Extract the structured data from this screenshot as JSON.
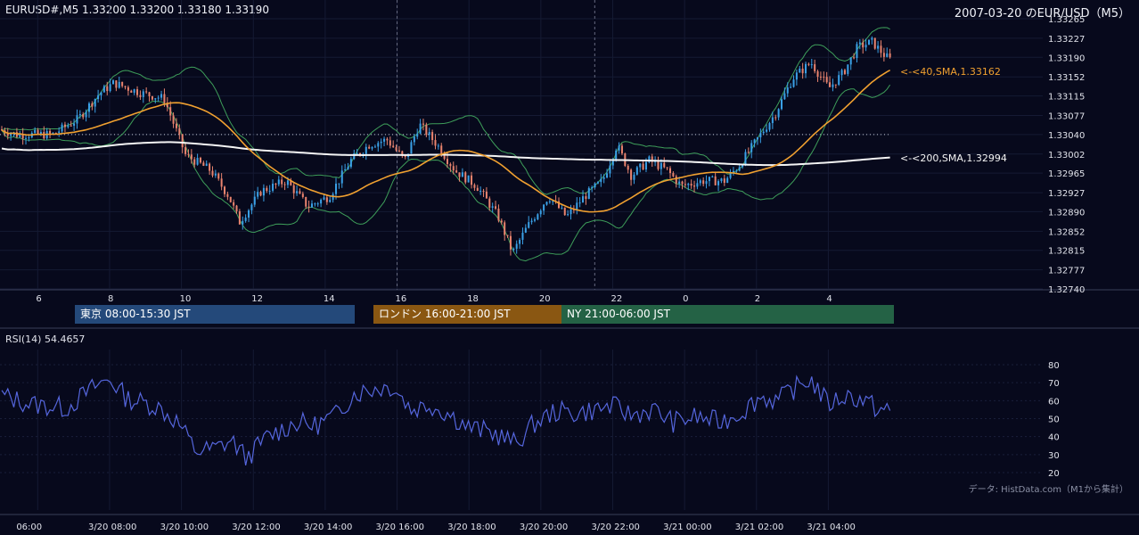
{
  "header": {
    "symbol_info": "EURUSD#,M5 1.33200 1.33200 1.33180 1.33190",
    "date_title": "2007-03-20 のEUR/USD（M5）"
  },
  "indicators": {
    "sma40_label": "<-<40,SMA,1.33162",
    "sma200_label": "<-<200,SMA,1.32994",
    "rsi_label": "RSI(14) 54.4657",
    "source": "データ: HistData.com（M1から集計）"
  },
  "sessions": [
    {
      "label": "東京 08:00-15:30 JST",
      "color": "#24497a"
    },
    {
      "label": "ロンドン 16:00-21:00 JST",
      "color": "#8a5712"
    },
    {
      "label": "NY 21:00-06:00 JST",
      "color": "#246245"
    }
  ],
  "colors": {
    "background": "#07091c",
    "bull": "#3aa0e6",
    "bear": "#e8836e",
    "sma40": "#f0a030",
    "sma200": "#f4f4f4",
    "bollinger": "#3e9e5a",
    "rsi": "#5566dd"
  },
  "chart_data": [
    {
      "type": "candlestick",
      "title": "EURUSD#,M5",
      "y_ticks": [
        "1.33265",
        "1.33227",
        "1.33190",
        "1.33152",
        "1.33115",
        "1.33077",
        "1.33040",
        "1.33002",
        "1.32965",
        "1.32927",
        "1.32890",
        "1.32852",
        "1.32815",
        "1.32777",
        "1.32740"
      ],
      "ylim": [
        1.3274,
        1.33265
      ],
      "x_ticks": [
        "6",
        "8",
        "10",
        "12",
        "14",
        "16",
        "18",
        "20",
        "22",
        "0",
        "2",
        "4"
      ],
      "last_bar": {
        "open": 1.332,
        "high": 1.332,
        "low": 1.3318,
        "close": 1.3319
      },
      "sma40_last": 1.33162,
      "sma200_last": 1.32994,
      "reference_level": 1.3304,
      "price_path": [
        {
          "hour": 5.0,
          "price": 1.3305
        },
        {
          "hour": 5.5,
          "price": 1.3304
        },
        {
          "hour": 6.5,
          "price": 1.3304
        },
        {
          "hour": 7.2,
          "price": 1.3307
        },
        {
          "hour": 7.8,
          "price": 1.3312
        },
        {
          "hour": 8.2,
          "price": 1.3314
        },
        {
          "hour": 9.0,
          "price": 1.3312
        },
        {
          "hour": 9.6,
          "price": 1.3311
        },
        {
          "hour": 10.2,
          "price": 1.33
        },
        {
          "hour": 10.9,
          "price": 1.3297
        },
        {
          "hour": 11.4,
          "price": 1.3292
        },
        {
          "hour": 11.7,
          "price": 1.3287
        },
        {
          "hour": 12.3,
          "price": 1.3293
        },
        {
          "hour": 13.0,
          "price": 1.3295
        },
        {
          "hour": 13.6,
          "price": 1.329
        },
        {
          "hour": 14.2,
          "price": 1.3292
        },
        {
          "hour": 14.8,
          "price": 1.3299
        },
        {
          "hour": 15.3,
          "price": 1.3302
        },
        {
          "hour": 15.8,
          "price": 1.3303
        },
        {
          "hour": 16.3,
          "price": 1.3299
        },
        {
          "hour": 16.7,
          "price": 1.3306
        },
        {
          "hour": 17.2,
          "price": 1.3302
        },
        {
          "hour": 17.7,
          "price": 1.3297
        },
        {
          "hour": 18.3,
          "price": 1.3294
        },
        {
          "hour": 18.9,
          "price": 1.3288
        },
        {
          "hour": 19.3,
          "price": 1.3281
        },
        {
          "hour": 19.7,
          "price": 1.3286
        },
        {
          "hour": 20.3,
          "price": 1.3292
        },
        {
          "hour": 20.8,
          "price": 1.3288
        },
        {
          "hour": 21.3,
          "price": 1.3292
        },
        {
          "hour": 21.8,
          "price": 1.3295
        },
        {
          "hour": 22.2,
          "price": 1.3302
        },
        {
          "hour": 22.6,
          "price": 1.3296
        },
        {
          "hour": 23.1,
          "price": 1.3299
        },
        {
          "hour": 23.6,
          "price": 1.3297
        },
        {
          "hour": 24.0,
          "price": 1.3294
        },
        {
          "hour": 24.6,
          "price": 1.3295
        },
        {
          "hour": 25.2,
          "price": 1.3295
        },
        {
          "hour": 25.6,
          "price": 1.3298
        },
        {
          "hour": 26.1,
          "price": 1.3303
        },
        {
          "hour": 26.6,
          "price": 1.3308
        },
        {
          "hour": 27.1,
          "price": 1.3315
        },
        {
          "hour": 27.6,
          "price": 1.3318
        },
        {
          "hour": 28.1,
          "price": 1.3313
        },
        {
          "hour": 28.5,
          "price": 1.3316
        },
        {
          "hour": 28.9,
          "price": 1.3321
        },
        {
          "hour": 29.3,
          "price": 1.3322
        },
        {
          "hour": 29.7,
          "price": 1.3319
        }
      ],
      "bars_count": 296,
      "candle_noise_seed": 7
    },
    {
      "type": "line",
      "title": "RSI(14)",
      "last_value": 54.4657,
      "y_ticks": [
        80,
        70,
        60,
        50,
        40,
        30,
        20
      ],
      "ylim": [
        20,
        80
      ],
      "x_ticks": [
        "06:00",
        "3/20 08:00",
        "3/20 10:00",
        "3/20 12:00",
        "3/20 14:00",
        "3/20 16:00",
        "3/20 18:00",
        "3/20 20:00",
        "3/20 22:00",
        "3/21 00:00",
        "3/21 02:00",
        "3/21 04:00"
      ],
      "rsi_path": [
        {
          "hour": 5.0,
          "value": 63
        },
        {
          "hour": 5.8,
          "value": 58
        },
        {
          "hour": 6.8,
          "value": 56
        },
        {
          "hour": 7.6,
          "value": 68
        },
        {
          "hour": 8.0,
          "value": 72
        },
        {
          "hour": 8.5,
          "value": 61
        },
        {
          "hour": 9.3,
          "value": 57
        },
        {
          "hour": 9.9,
          "value": 48
        },
        {
          "hour": 10.4,
          "value": 32
        },
        {
          "hour": 10.9,
          "value": 33
        },
        {
          "hour": 11.4,
          "value": 38
        },
        {
          "hour": 11.8,
          "value": 28
        },
        {
          "hour": 12.4,
          "value": 40
        },
        {
          "hour": 13.2,
          "value": 48
        },
        {
          "hour": 13.7,
          "value": 46
        },
        {
          "hour": 14.3,
          "value": 52
        },
        {
          "hour": 14.8,
          "value": 64
        },
        {
          "hour": 15.4,
          "value": 67
        },
        {
          "hour": 15.9,
          "value": 68
        },
        {
          "hour": 16.4,
          "value": 55
        },
        {
          "hour": 16.9,
          "value": 58
        },
        {
          "hour": 17.5,
          "value": 52
        },
        {
          "hour": 18.0,
          "value": 45
        },
        {
          "hour": 18.7,
          "value": 42
        },
        {
          "hour": 19.3,
          "value": 36
        },
        {
          "hour": 19.8,
          "value": 47
        },
        {
          "hour": 20.4,
          "value": 54
        },
        {
          "hour": 21.0,
          "value": 53
        },
        {
          "hour": 21.5,
          "value": 55
        },
        {
          "hour": 22.0,
          "value": 57
        },
        {
          "hour": 22.5,
          "value": 52
        },
        {
          "hour": 23.1,
          "value": 55
        },
        {
          "hour": 23.7,
          "value": 48
        },
        {
          "hour": 24.3,
          "value": 51
        },
        {
          "hour": 25.0,
          "value": 48
        },
        {
          "hour": 25.6,
          "value": 54
        },
        {
          "hour": 26.1,
          "value": 62
        },
        {
          "hour": 26.6,
          "value": 60
        },
        {
          "hour": 27.0,
          "value": 66
        },
        {
          "hour": 27.5,
          "value": 72
        },
        {
          "hour": 28.0,
          "value": 58
        },
        {
          "hour": 28.5,
          "value": 63
        },
        {
          "hour": 29.0,
          "value": 60
        },
        {
          "hour": 29.4,
          "value": 55
        },
        {
          "hour": 29.7,
          "value": 54.5
        }
      ]
    }
  ]
}
